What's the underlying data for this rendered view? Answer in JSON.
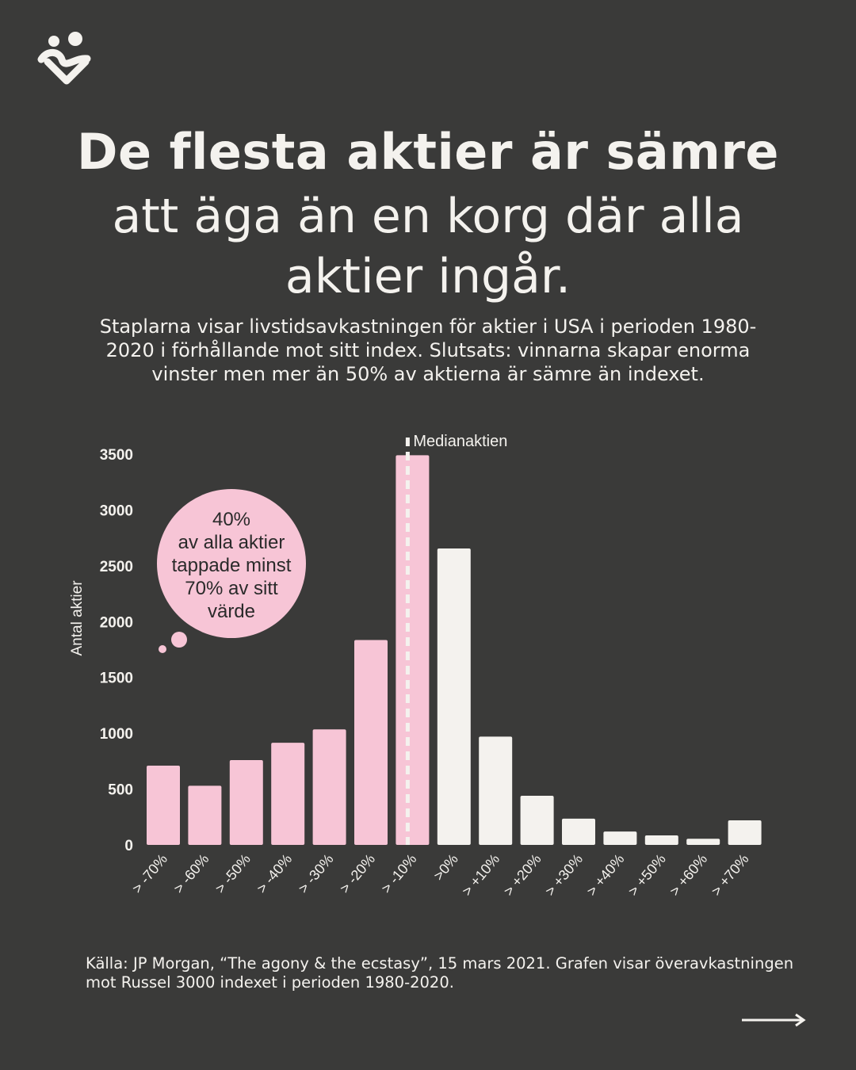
{
  "header": {
    "logo": "heart-people-logo",
    "title_bold": "De flesta aktier är sämre",
    "title_rest": "att äga än en korg där alla aktier ingår.",
    "subtitle": "Staplarna visar livstidsavkastningen för aktier i USA i perioden 1980-2020 i förhållande mot sitt index. Slutsats: vinnarna skapar enorma vinster men mer än 50% av aktierna är sämre än indexet."
  },
  "chart_data": {
    "type": "bar",
    "ylabel": "Antal aktier",
    "xlabel": "",
    "ylim": [
      0,
      3500
    ],
    "yticks": [
      0,
      500,
      1000,
      1500,
      2000,
      2500,
      3000,
      3500
    ],
    "grid": false,
    "categories": [
      "> -70%",
      "> -60%",
      "> -50%",
      "> -40%",
      "> -30%",
      "> -20%",
      "> -10%",
      ">0%",
      "> +10%",
      "> +20%",
      "> +30%",
      "> +40%",
      "> +50%",
      "> +60%",
      "> +70%"
    ],
    "values": [
      710,
      530,
      760,
      915,
      1035,
      1835,
      3490,
      2655,
      970,
      440,
      235,
      120,
      85,
      55,
      220
    ],
    "colors": {
      "negative": "#f7c5d6",
      "positive": "#f4f2ee"
    },
    "median_marker": {
      "category": "> -10%",
      "label": "Medianaktien"
    },
    "annotation": {
      "lines": [
        "40%",
        "av alla aktier",
        "tappade minst",
        "70% av sitt",
        "värde"
      ]
    }
  },
  "footer": {
    "source": "Källa: JP Morgan, “The agony & the ecstasy”, 15 mars 2021. Grafen visar överavkastningen mot Russel 3000 indexet i perioden 1980-2020.",
    "next_icon": "arrow-right-icon"
  }
}
